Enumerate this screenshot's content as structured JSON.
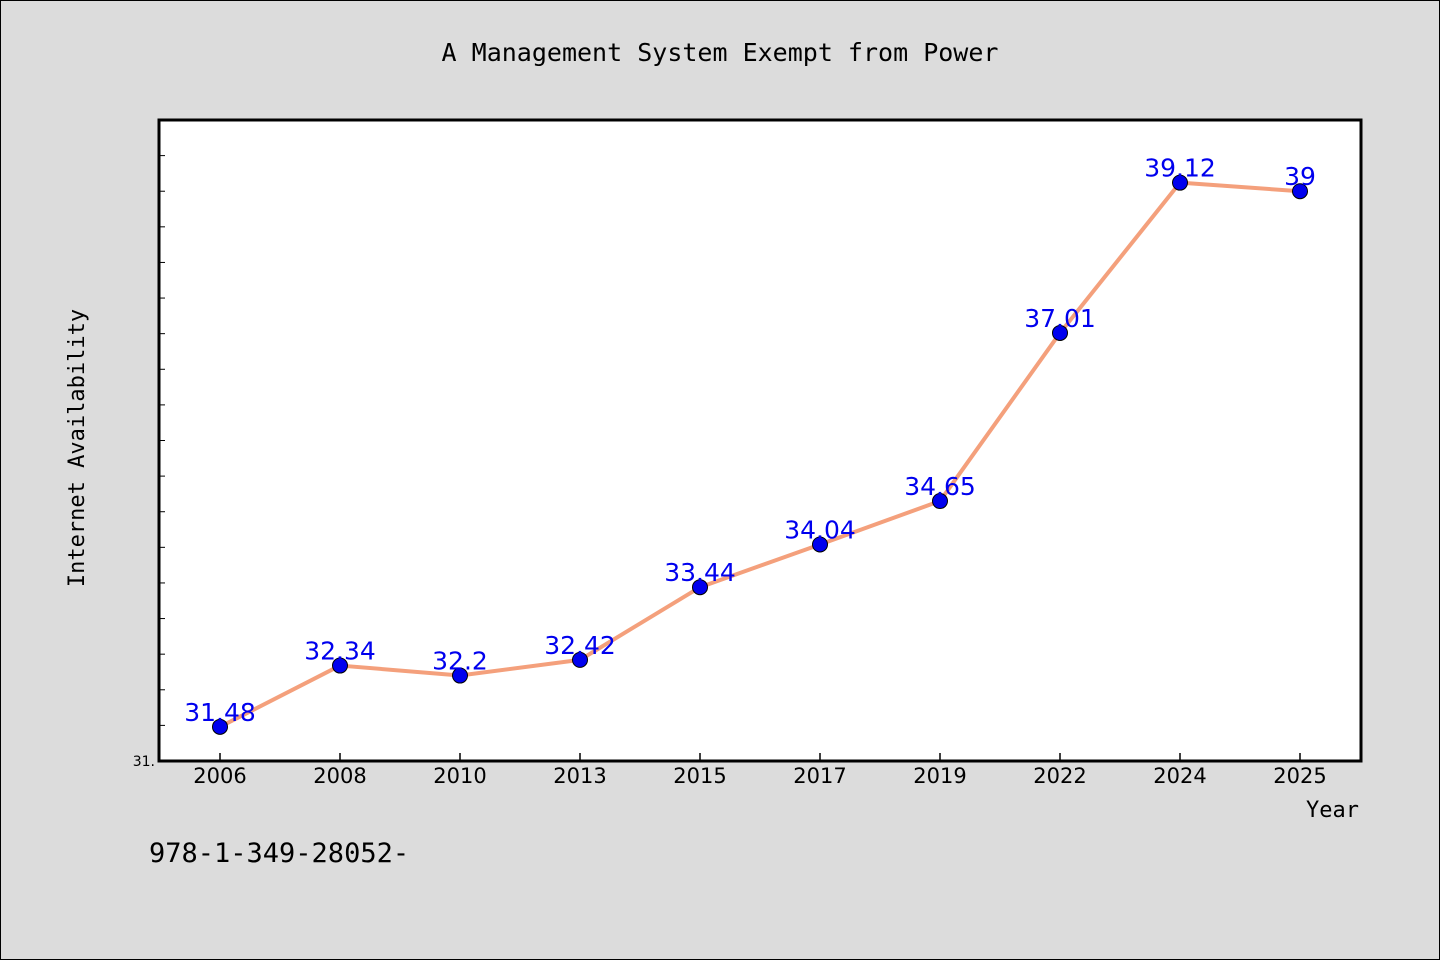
{
  "chart_data": {
    "type": "line",
    "title": "A Management System Exempt from Power",
    "xlabel": "Year",
    "ylabel": "Internet Availability",
    "categories": [
      "2006",
      "2008",
      "2010",
      "2013",
      "2015",
      "2017",
      "2019",
      "2022",
      "2024",
      "2025"
    ],
    "series": [
      {
        "values": [
          31.48,
          32.34,
          32.2,
          32.42,
          33.44,
          34.04,
          34.65,
          37.01,
          39.12,
          39
        ]
      }
    ],
    "data_labels": [
      "31.48",
      "32.34",
      "32.2",
      "32.42",
      "33.44",
      "34.04",
      "34.65",
      "37.01",
      "39.12",
      "39"
    ],
    "y_tick_labels": [
      "31."
    ],
    "ylim": [
      31.0,
      40.0
    ],
    "grid": false,
    "legend": "none",
    "colors": {
      "line": "#f4a07c",
      "marker": "#0000ee",
      "data_label": "#0000ee",
      "background": "#dcdcdc",
      "plot_background": "#ffffff"
    }
  },
  "footer": {
    "isbn": "978-1-349-28052-"
  }
}
